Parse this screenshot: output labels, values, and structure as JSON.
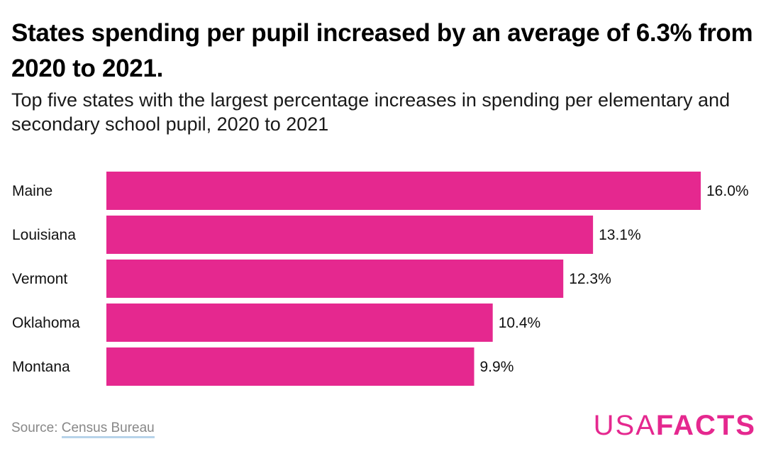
{
  "header": {
    "title": "States spending per pupil increased by an average of 6.3% from 2020 to 2021.",
    "subtitle": "Top five states with the largest percentage increases in spending per elementary and secondary school pupil, 2020 to 2021"
  },
  "chart_data": {
    "type": "bar",
    "orientation": "horizontal",
    "categories": [
      "Maine",
      "Louisiana",
      "Vermont",
      "Oklahoma",
      "Montana"
    ],
    "values": [
      16.0,
      13.1,
      12.3,
      10.4,
      9.9
    ],
    "value_labels": [
      "16.0%",
      "13.1%",
      "12.3%",
      "10.4%",
      "9.9%"
    ],
    "title": "States spending per pupil increased by an average of 6.3% from 2020 to 2021.",
    "subtitle": "Top five states with the largest percentage increases in spending per elementary and secondary school pupil, 2020 to 2021",
    "xlim": [
      0,
      16.0
    ],
    "grid": false,
    "legend": "none",
    "bar_color": "#e5288f"
  },
  "footer": {
    "source_prefix": "Source: ",
    "source_link": "Census Bureau",
    "logo_usa": "USA",
    "logo_facts": "FACTS"
  },
  "colors": {
    "accent": "#e5288f",
    "source_underline": "#b7d3ea"
  }
}
